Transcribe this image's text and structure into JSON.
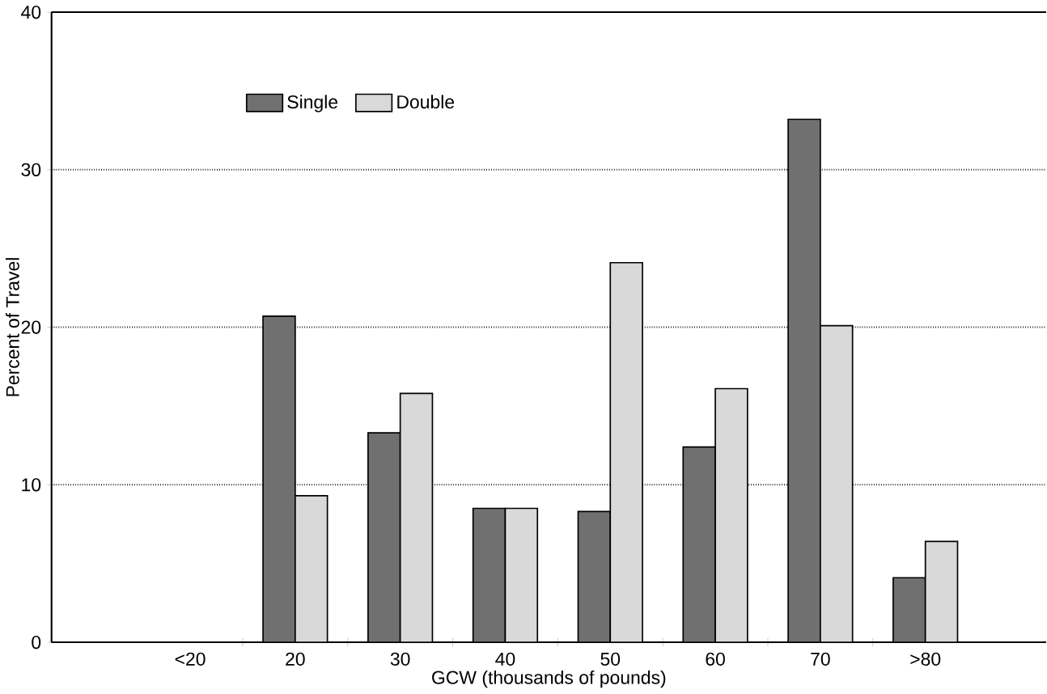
{
  "chart_data": {
    "type": "bar",
    "xlabel": "GCW (thousands of pounds)",
    "ylabel": "Percent of Travel",
    "categories": [
      "<20",
      "20",
      "30",
      "40",
      "50",
      "60",
      "70",
      ">80"
    ],
    "series": [
      {
        "name": "Single",
        "color": "#707070",
        "values": [
          null,
          20.7,
          13.3,
          8.5,
          8.3,
          12.4,
          33.2,
          4.1
        ]
      },
      {
        "name": "Double",
        "color": "#d9d9d9",
        "values": [
          null,
          9.3,
          15.8,
          8.5,
          24.1,
          16.1,
          20.1,
          6.4
        ]
      }
    ],
    "ylim": [
      0,
      40
    ],
    "yticks": [
      0,
      10,
      20,
      30,
      40
    ],
    "grid": "y",
    "line_style": "solid",
    "legend": "top left"
  }
}
